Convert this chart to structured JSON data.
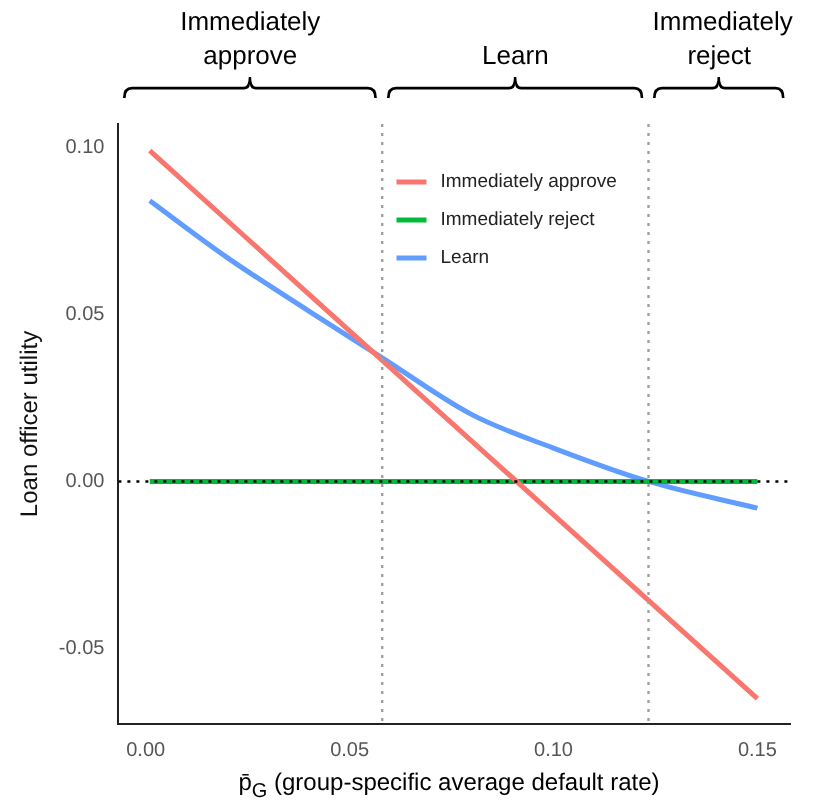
{
  "chart_data": {
    "type": "line",
    "xlabel": "p̄$_{G}$ (group-specific average default rate)",
    "ylabel": "Loan officer utility",
    "xlim": [
      -0.0067,
      0.158
    ],
    "xticks": [
      {
        "value": 0,
        "label": "0.00"
      },
      0.05,
      {
        "value": 0.1,
        "label": "0.10"
      },
      0.15
    ],
    "ylim": [
      -0.0726,
      0.107
    ],
    "yticks": [
      {
        "value": -0.05,
        "label": "-0.05"
      },
      {
        "value": 0,
        "label": "0.00"
      },
      0.05,
      {
        "value": 0.1,
        "label": "0.10"
      }
    ],
    "grid": false,
    "legend": "top right",
    "marker": "none",
    "line_style": "solid",
    "series": [
      {
        "name": "Immediately approve",
        "color": "#f8766d",
        "x": [
          0.001,
          0.15
        ],
        "values": [
          0.099,
          -0.065
        ]
      },
      {
        "name": "Immediately reject",
        "color": "#00ba38",
        "x": [
          0.001,
          0.15
        ],
        "values": [
          0,
          0
        ]
      },
      {
        "name": "Learn",
        "color": "#619cff",
        "x": [
          0.001,
          0.02,
          0.04,
          0.058,
          0.08,
          0.1,
          0.1233,
          0.15
        ],
        "values": [
          0.084,
          0.067,
          0.051,
          0.037,
          0.02,
          0.01,
          0,
          -0.008
        ]
      }
    ],
    "ref_lines": [
      {
        "axis": "y",
        "value": 0,
        "color": "#000000",
        "line_style": "dotted"
      },
      {
        "axis": "x",
        "value": 0.058,
        "color": "#a0a0a0",
        "line_style": "dotted"
      },
      {
        "axis": "x",
        "value": 0.1233,
        "color": "#a0a0a0",
        "line_style": "dotted"
      }
    ],
    "annotations": [
      "Immediately\napprove",
      "Learn",
      "Immediately\nreject"
    ]
  }
}
